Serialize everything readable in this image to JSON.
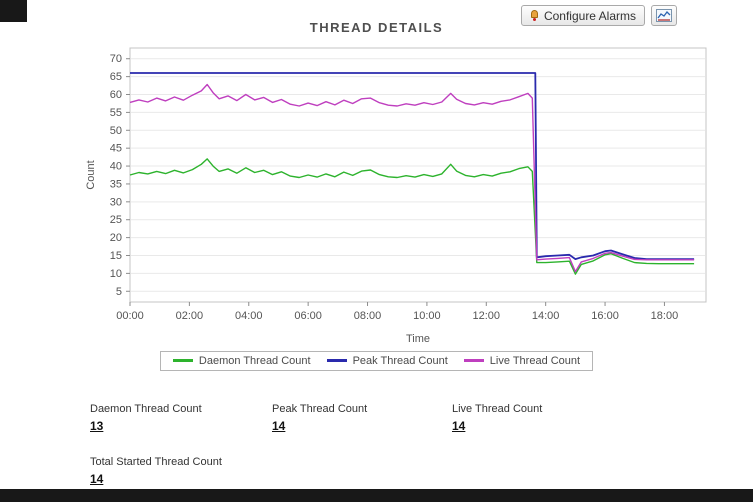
{
  "header": {
    "title": "THREAD DETAILS",
    "buttons": [
      {
        "label": "Configure Alarms",
        "icon": "alarm-icon"
      },
      {
        "label": "",
        "icon": "graph-icon"
      }
    ]
  },
  "stats": [
    {
      "label": "Daemon Thread Count",
      "value": "13"
    },
    {
      "label": "Peak Thread Count",
      "value": "14"
    },
    {
      "label": "Live Thread Count",
      "value": "14"
    },
    {
      "label": "Total Started Thread Count",
      "value": "14"
    }
  ],
  "chart_data": {
    "type": "line",
    "title": "THREAD DETAILS",
    "xlabel": "Time",
    "ylabel": "Count",
    "xlim": [
      0,
      19.4
    ],
    "ylim": [
      2,
      73
    ],
    "xticks": [
      0,
      2,
      4,
      6,
      8,
      10,
      12,
      14,
      16,
      18
    ],
    "xtick_labels": [
      "00:00",
      "02:00",
      "04:00",
      "06:00",
      "08:00",
      "10:00",
      "12:00",
      "14:00",
      "16:00",
      "18:00"
    ],
    "yticks": [
      5,
      10,
      15,
      20,
      25,
      30,
      35,
      40,
      45,
      50,
      55,
      60,
      65,
      70
    ],
    "grid": "horizontal",
    "legend_position": "bottom",
    "series": [
      {
        "name": "Daemon Thread Count",
        "color": "#2db32d",
        "points": [
          [
            0,
            37.5
          ],
          [
            0.3,
            38.2
          ],
          [
            0.6,
            37.8
          ],
          [
            0.9,
            38.5
          ],
          [
            1.2,
            37.9
          ],
          [
            1.5,
            38.8
          ],
          [
            1.8,
            38.1
          ],
          [
            2.1,
            39
          ],
          [
            2.4,
            40.5
          ],
          [
            2.6,
            42
          ],
          [
            2.8,
            40
          ],
          [
            3,
            38.5
          ],
          [
            3.3,
            39.2
          ],
          [
            3.6,
            38
          ],
          [
            3.9,
            39.5
          ],
          [
            4.2,
            38.2
          ],
          [
            4.5,
            38.8
          ],
          [
            4.8,
            37.6
          ],
          [
            5.1,
            38.4
          ],
          [
            5.4,
            37.2
          ],
          [
            5.7,
            36.8
          ],
          [
            6,
            37.5
          ],
          [
            6.3,
            36.9
          ],
          [
            6.6,
            37.8
          ],
          [
            6.9,
            37
          ],
          [
            7.2,
            38.3
          ],
          [
            7.5,
            37.4
          ],
          [
            7.8,
            38.6
          ],
          [
            8.1,
            38.9
          ],
          [
            8.4,
            37.6
          ],
          [
            8.7,
            37
          ],
          [
            9,
            36.8
          ],
          [
            9.3,
            37.3
          ],
          [
            9.6,
            36.9
          ],
          [
            9.9,
            37.6
          ],
          [
            10.2,
            37.1
          ],
          [
            10.5,
            37.8
          ],
          [
            10.8,
            40.5
          ],
          [
            11,
            38.6
          ],
          [
            11.3,
            37.4
          ],
          [
            11.6,
            37
          ],
          [
            11.9,
            37.6
          ],
          [
            12.2,
            37.2
          ],
          [
            12.5,
            38
          ],
          [
            12.8,
            38.4
          ],
          [
            13.1,
            39.3
          ],
          [
            13.4,
            39.8
          ],
          [
            13.55,
            38.5
          ],
          [
            13.7,
            13
          ],
          [
            14,
            13
          ],
          [
            14.4,
            13.2
          ],
          [
            14.8,
            13.4
          ],
          [
            15,
            9.8
          ],
          [
            15.2,
            12.5
          ],
          [
            15.6,
            13.5
          ],
          [
            16,
            15.2
          ],
          [
            16.2,
            15.5
          ],
          [
            16.6,
            14.2
          ],
          [
            17,
            13
          ],
          [
            17.4,
            12.8
          ],
          [
            17.8,
            12.7
          ],
          [
            18.2,
            12.7
          ],
          [
            18.6,
            12.7
          ],
          [
            19,
            12.7
          ]
        ]
      },
      {
        "name": "Peak Thread Count",
        "color": "#2a2aad",
        "points": [
          [
            0,
            66
          ],
          [
            2,
            66
          ],
          [
            4,
            66
          ],
          [
            6,
            66
          ],
          [
            8,
            66
          ],
          [
            10,
            66
          ],
          [
            12,
            66
          ],
          [
            13.65,
            66
          ],
          [
            13.7,
            14.5
          ],
          [
            14,
            14.8
          ],
          [
            14.4,
            15
          ],
          [
            14.8,
            15.2
          ],
          [
            15,
            14
          ],
          [
            15.2,
            14.5
          ],
          [
            15.6,
            15
          ],
          [
            16,
            16.2
          ],
          [
            16.2,
            16.4
          ],
          [
            16.6,
            15.3
          ],
          [
            17,
            14.3
          ],
          [
            17.4,
            14
          ],
          [
            17.8,
            14
          ],
          [
            18.2,
            14
          ],
          [
            18.6,
            14
          ],
          [
            19,
            14
          ]
        ]
      },
      {
        "name": "Live Thread Count",
        "color": "#bf3fbf",
        "points": [
          [
            0,
            57.8
          ],
          [
            0.3,
            58.5
          ],
          [
            0.6,
            57.9
          ],
          [
            0.9,
            59
          ],
          [
            1.2,
            58.2
          ],
          [
            1.5,
            59.3
          ],
          [
            1.8,
            58.4
          ],
          [
            2.1,
            59.8
          ],
          [
            2.4,
            61
          ],
          [
            2.6,
            62.8
          ],
          [
            2.8,
            60.5
          ],
          [
            3,
            58.8
          ],
          [
            3.3,
            59.6
          ],
          [
            3.6,
            58.3
          ],
          [
            3.9,
            60
          ],
          [
            4.2,
            58.5
          ],
          [
            4.5,
            59.2
          ],
          [
            4.8,
            57.8
          ],
          [
            5.1,
            58.6
          ],
          [
            5.4,
            57.3
          ],
          [
            5.7,
            56.8
          ],
          [
            6,
            57.6
          ],
          [
            6.3,
            56.9
          ],
          [
            6.6,
            58
          ],
          [
            6.9,
            57.1
          ],
          [
            7.2,
            58.4
          ],
          [
            7.5,
            57.5
          ],
          [
            7.8,
            58.8
          ],
          [
            8.1,
            59
          ],
          [
            8.4,
            57.7
          ],
          [
            8.7,
            57
          ],
          [
            9,
            56.8
          ],
          [
            9.3,
            57.4
          ],
          [
            9.6,
            57
          ],
          [
            9.9,
            57.7
          ],
          [
            10.2,
            57.2
          ],
          [
            10.5,
            57.9
          ],
          [
            10.8,
            60.3
          ],
          [
            11,
            58.7
          ],
          [
            11.3,
            57.5
          ],
          [
            11.6,
            57.1
          ],
          [
            11.9,
            57.7
          ],
          [
            12.2,
            57.3
          ],
          [
            12.5,
            58.1
          ],
          [
            12.8,
            58.5
          ],
          [
            13.1,
            59.4
          ],
          [
            13.4,
            60.3
          ],
          [
            13.55,
            59
          ],
          [
            13.7,
            13.8
          ],
          [
            14,
            14
          ],
          [
            14.4,
            14.2
          ],
          [
            14.8,
            14.4
          ],
          [
            15,
            10.5
          ],
          [
            15.2,
            13.2
          ],
          [
            15.6,
            14.2
          ],
          [
            16,
            15.6
          ],
          [
            16.2,
            15.8
          ],
          [
            16.6,
            14.8
          ],
          [
            17,
            13.9
          ],
          [
            17.4,
            13.8
          ],
          [
            17.8,
            13.8
          ],
          [
            18.2,
            13.8
          ],
          [
            18.6,
            13.8
          ],
          [
            19,
            13.8
          ]
        ]
      }
    ]
  }
}
